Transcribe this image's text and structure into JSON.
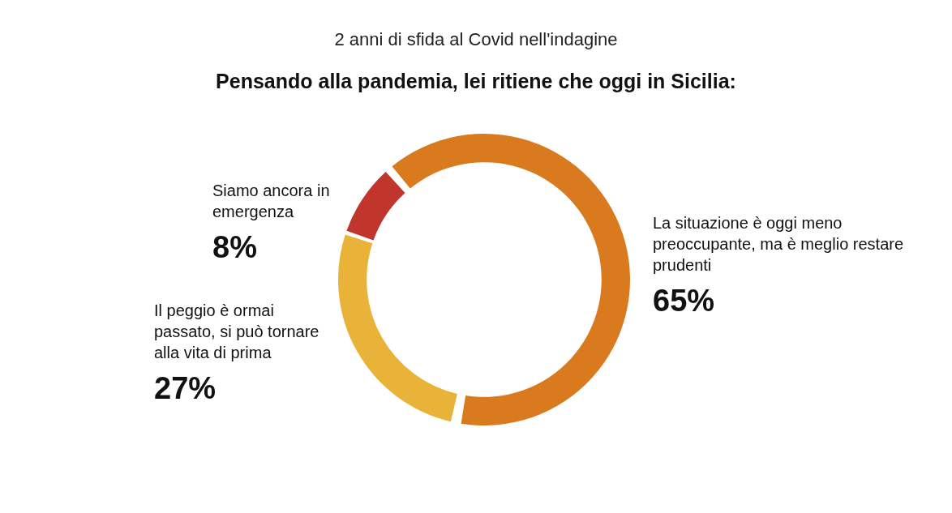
{
  "chart_data": {
    "type": "donut",
    "title": "2 anni di sfida al Covid nell'indagine",
    "subtitle": "Pensando alla pandemia, lei ritiene che oggi in Sicilia:",
    "categories": [
      "La situazione è oggi meno preoccupante, ma è meglio restare prudenti",
      "Il peggio è ormai passato, si può tornare alla vita di prima",
      "Siamo ancora in emergenza"
    ],
    "values": [
      65,
      27,
      8
    ],
    "colors": [
      "#d97a1e",
      "#e9b33a",
      "#c0362c"
    ],
    "value_labels": [
      "65%",
      "27%",
      "8%"
    ],
    "legend": false
  }
}
